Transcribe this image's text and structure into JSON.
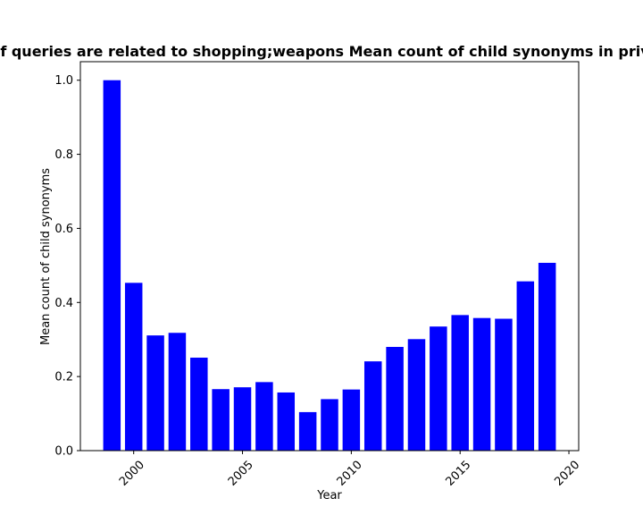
{
  "chart_data": {
    "type": "bar",
    "title": "Proportion of queries are related to shopping;weapons Mean count of child synonyms in privacy policies",
    "xlabel": "Year",
    "ylabel": "Mean count of child synonyms",
    "x": [
      1999,
      2000,
      2001,
      2002,
      2003,
      2004,
      2005,
      2006,
      2007,
      2008,
      2009,
      2010,
      2011,
      2012,
      2013,
      2014,
      2015,
      2016,
      2017,
      2018,
      2019
    ],
    "values": [
      1.0,
      0.453,
      0.311,
      0.318,
      0.251,
      0.166,
      0.171,
      0.185,
      0.157,
      0.104,
      0.139,
      0.165,
      0.241,
      0.28,
      0.301,
      0.335,
      0.366,
      0.358,
      0.356,
      0.457,
      0.507
    ],
    "xlim": [
      1997.55,
      2020.45
    ],
    "ylim": [
      0,
      1.05
    ],
    "xticks": [
      "2000",
      "2005",
      "2010",
      "2015",
      "2020"
    ],
    "xtick_values": [
      2000,
      2005,
      2010,
      2015,
      2020
    ],
    "yticks": [
      "0.0",
      "0.2",
      "0.4",
      "0.6",
      "0.8",
      "1.0"
    ],
    "ytick_values": [
      0,
      0.2,
      0.4,
      0.6,
      0.8,
      1.0
    ],
    "bar_color": "#0000ff",
    "grid": false,
    "legend": false
  }
}
